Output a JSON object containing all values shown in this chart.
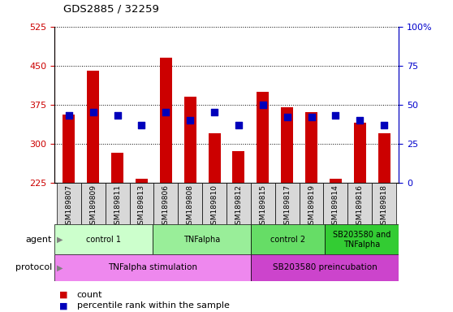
{
  "title": "GDS2885 / 32259",
  "samples": [
    "GSM189807",
    "GSM189809",
    "GSM189811",
    "GSM189813",
    "GSM189806",
    "GSM189808",
    "GSM189810",
    "GSM189812",
    "GSM189815",
    "GSM189817",
    "GSM189819",
    "GSM189814",
    "GSM189816",
    "GSM189818"
  ],
  "counts": [
    355,
    440,
    282,
    232,
    465,
    390,
    320,
    285,
    400,
    370,
    360,
    232,
    340,
    320
  ],
  "percentile_ranks_pct": [
    43,
    45,
    43,
    37,
    45,
    40,
    45,
    37,
    50,
    42,
    42,
    43,
    40,
    37
  ],
  "ylim_left": [
    225,
    525
  ],
  "ylim_right": [
    0,
    100
  ],
  "yticks_left": [
    225,
    300,
    375,
    450,
    525
  ],
  "yticks_right": [
    0,
    25,
    50,
    75,
    100
  ],
  "bar_color": "#cc0000",
  "dot_color": "#0000bb",
  "bar_bottom": 225,
  "agent_groups": [
    {
      "label": "control 1",
      "start": 0,
      "end": 4,
      "color": "#ccffcc"
    },
    {
      "label": "TNFalpha",
      "start": 4,
      "end": 8,
      "color": "#99ee99"
    },
    {
      "label": "control 2",
      "start": 8,
      "end": 11,
      "color": "#66dd66"
    },
    {
      "label": "SB203580 and\nTNFalpha",
      "start": 11,
      "end": 14,
      "color": "#33cc33"
    }
  ],
  "protocol_groups": [
    {
      "label": "TNFalpha stimulation",
      "start": 0,
      "end": 8,
      "color": "#ee88ee"
    },
    {
      "label": "SB203580 preincubation",
      "start": 8,
      "end": 14,
      "color": "#cc44cc"
    }
  ],
  "tick_color_left": "#cc0000",
  "tick_color_right": "#0000cc",
  "xticklabel_bg": "#d8d8d8"
}
